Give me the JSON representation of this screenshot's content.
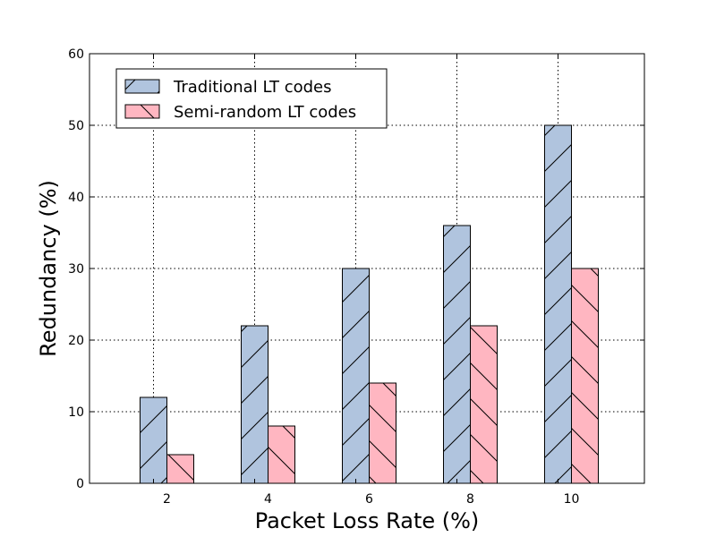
{
  "chart_data": {
    "type": "bar",
    "title": "",
    "xlabel": "Packet Loss Rate (%)",
    "ylabel": "Redundancy (%)",
    "categories": [
      "2",
      "4",
      "6",
      "8",
      "10"
    ],
    "ylim": [
      0,
      60
    ],
    "yticks": [
      "0",
      "10",
      "20",
      "30",
      "40",
      "50",
      "60"
    ],
    "grid": true,
    "legend_position": "top-left",
    "series": [
      {
        "name": "Traditional LT codes",
        "values": [
          12,
          22,
          30,
          36,
          50
        ],
        "color": "#b0c4de",
        "hatch": "/"
      },
      {
        "name": "Semi-random LT codes",
        "values": [
          4,
          8,
          14,
          22,
          30
        ],
        "color": "#ffb6c1",
        "hatch": "\\"
      }
    ]
  }
}
